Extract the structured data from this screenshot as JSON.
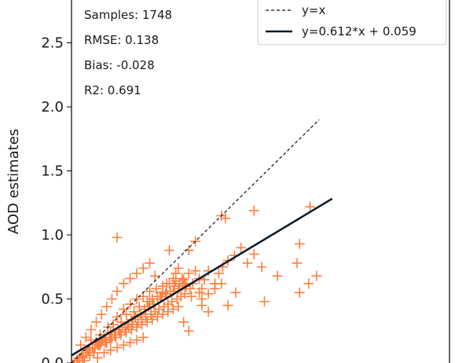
{
  "chart_data": {
    "type": "scatter",
    "ylabel": "AOD estimates",
    "xlabel": "",
    "xlim": [
      0.0,
      2.9
    ],
    "ylim": [
      0.0,
      2.85
    ],
    "yticks": [
      {
        "value": 0.0,
        "label": "0.0"
      },
      {
        "value": 0.5,
        "label": "0.5"
      },
      {
        "value": 1.0,
        "label": "1.0"
      },
      {
        "value": 1.5,
        "label": "1.5"
      },
      {
        "value": 2.0,
        "label": "2.0"
      },
      {
        "value": 2.5,
        "label": "2.5"
      }
    ],
    "grid": false,
    "stats": [
      "Samples: 1748",
      "RMSE: 0.138",
      "Bias: -0.028",
      "R2: 0.691"
    ],
    "legend": {
      "placement": "top-right",
      "entries": [
        {
          "label": "y=x",
          "style": "dashed"
        },
        {
          "label": "y=0.612*x + 0.059",
          "style": "solid"
        }
      ]
    },
    "identity_line": {
      "x": [
        0.0,
        1.9
      ],
      "y": [
        0.0,
        1.9
      ]
    },
    "fit_line": {
      "slope": 0.612,
      "intercept": 0.059,
      "x": [
        0.0,
        2.0
      ]
    },
    "points": {
      "marker": "+",
      "color": "#ff7f3f",
      "x": [
        0.35,
        0.6,
        0.66,
        0.73,
        0.78,
        0.8,
        0.82,
        0.7,
        0.64,
        0.75,
        1.0,
        1.02,
        1.05,
        1.1,
        1.13,
        1.16,
        1.2,
        1.25,
        1.3,
        1.35,
        1.4,
        1.15,
        1.18,
        1.1,
        0.98,
        1.48,
        1.83,
        1.75,
        1.73,
        1.75,
        1.82,
        1.88,
        1.4,
        1.46,
        1.58,
        1.26,
        0.9,
        0.95,
        0.85,
        0.87,
        0.92,
        1.0,
        1.05,
        0.86,
        0.9,
        1.2,
        0.08,
        0.12,
        0.15,
        0.18,
        0.22,
        0.25,
        0.28,
        0.3,
        0.32,
        0.35,
        0.38,
        0.4,
        0.42,
        0.45,
        0.48,
        0.5,
        0.52,
        0.55,
        0.58,
        0.6,
        0.62,
        0.65,
        0.68,
        0.7,
        0.72,
        0.75,
        0.78,
        0.8,
        0.82,
        0.85,
        0.88,
        0.9,
        0.93,
        0.95,
        0.98,
        0.1,
        0.14,
        0.17,
        0.2,
        0.23,
        0.26,
        0.29,
        0.33,
        0.36,
        0.39,
        0.43,
        0.46,
        0.49,
        0.53,
        0.56,
        0.59,
        0.63,
        0.66,
        0.69,
        0.73,
        0.76,
        0.79,
        0.83,
        0.86,
        0.05,
        0.09,
        0.13,
        0.16,
        0.19,
        0.21,
        0.24,
        0.27,
        0.31,
        0.34,
        0.37,
        0.41,
        0.44,
        0.47,
        0.51,
        0.54,
        0.57,
        0.61,
        0.64,
        0.67,
        0.71,
        0.74,
        0.77,
        0.81,
        0.84,
        0.87,
        0.91,
        0.02,
        0.04,
        0.06,
        0.08,
        0.11,
        0.14,
        0.18,
        0.22,
        0.26,
        0.3,
        0.34,
        0.38,
        0.42,
        0.46,
        0.5,
        0.54,
        0.58,
        0.62,
        0.66,
        0.7,
        0.74,
        0.78,
        0.82,
        1.0,
        1.05,
        1.1,
        1.15,
        0.07,
        0.11,
        0.15,
        0.19,
        0.23,
        0.27,
        0.31,
        0.35,
        0.4,
        0.45,
        0.5,
        0.55,
        0.6,
        0.2,
        0.25,
        0.3,
        0.35,
        0.4,
        0.45,
        0.5,
        0.55
      ],
      "y": [
        0.98,
        0.48,
        0.52,
        0.62,
        0.66,
        0.7,
        0.74,
        0.55,
        0.68,
        0.88,
        0.58,
        0.65,
        0.72,
        0.62,
        0.7,
        0.75,
        0.8,
        0.84,
        0.9,
        0.78,
        0.85,
        1.15,
        1.13,
        0.62,
        0.55,
        0.48,
        1.22,
        0.93,
        0.78,
        0.55,
        0.62,
        0.68,
        1.19,
        0.75,
        0.68,
        0.55,
        0.88,
        0.95,
        0.6,
        0.62,
        0.52,
        0.45,
        0.4,
        0.32,
        0.25,
        0.45,
        0.05,
        0.1,
        0.18,
        0.12,
        0.22,
        0.2,
        0.28,
        0.24,
        0.3,
        0.36,
        0.32,
        0.42,
        0.38,
        0.46,
        0.4,
        0.5,
        0.44,
        0.52,
        0.48,
        0.56,
        0.5,
        0.58,
        0.52,
        0.6,
        0.54,
        0.62,
        0.56,
        0.64,
        0.58,
        0.66,
        0.6,
        0.7,
        0.62,
        0.72,
        0.66,
        0.02,
        0.06,
        0.08,
        0.14,
        0.16,
        0.18,
        0.2,
        0.22,
        0.26,
        0.28,
        0.3,
        0.34,
        0.36,
        0.38,
        0.42,
        0.44,
        0.46,
        0.5,
        0.52,
        0.54,
        0.56,
        0.6,
        0.62,
        0.65,
        0.0,
        0.04,
        0.1,
        0.12,
        0.16,
        0.14,
        0.18,
        0.16,
        0.2,
        0.22,
        0.24,
        0.26,
        0.28,
        0.3,
        0.32,
        0.34,
        0.36,
        0.38,
        0.4,
        0.42,
        0.44,
        0.46,
        0.48,
        0.5,
        0.52,
        0.54,
        0.58,
        0.0,
        0.02,
        0.04,
        0.06,
        0.08,
        0.1,
        0.12,
        0.14,
        0.16,
        0.18,
        0.2,
        0.22,
        0.24,
        0.26,
        0.28,
        0.3,
        0.32,
        0.34,
        0.36,
        0.38,
        0.4,
        0.42,
        0.44,
        0.5,
        0.54,
        0.58,
        0.62,
        0.14,
        0.2,
        0.26,
        0.32,
        0.38,
        0.44,
        0.5,
        0.56,
        0.62,
        0.66,
        0.7,
        0.74,
        0.78,
        0.04,
        0.08,
        0.1,
        0.12,
        0.14,
        0.16,
        0.18,
        0.2
      ]
    }
  }
}
